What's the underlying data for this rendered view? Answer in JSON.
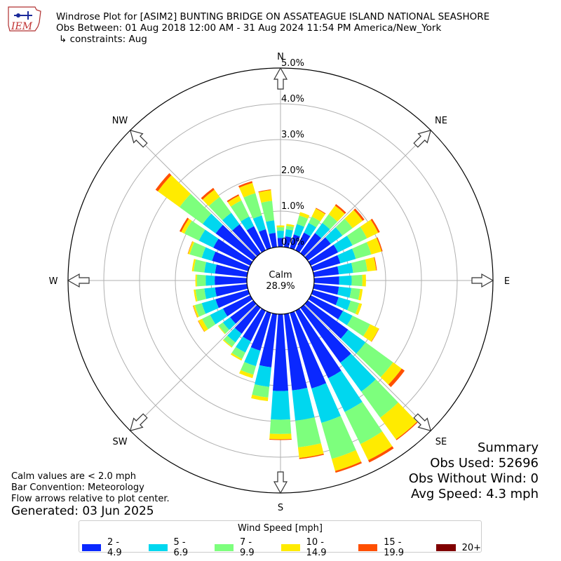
{
  "header": {
    "logo_text": "IEM",
    "title": "Windrose Plot for [ASIM2] BUNTING BRIDGE ON ASSATEAGUE ISLAND NATIONAL SEASHORE",
    "obs_between": "Obs Between: 01 Aug 2018 12:00 AM - 31 Aug 2024 11:54 PM America/New_York",
    "constraints": "↳ constraints: Aug"
  },
  "calm": {
    "label": "Calm",
    "value": "28.9%"
  },
  "summary": {
    "heading": "Summary",
    "obs_used": "Obs Used: 52696",
    "obs_without_wind": "Obs Without Wind: 0",
    "avg_speed": "Avg Speed: 4.3 mph"
  },
  "notes": {
    "calm_note": "Calm values are < 2.0 mph",
    "bar_convention": "Bar Convention: Meteorology",
    "flow_arrows": "Flow arrows relative to plot center."
  },
  "generated": "Generated: 03 Jun 2025",
  "legend": {
    "title": "Wind Speed [mph]",
    "items": [
      {
        "label": "2 - 4.9",
        "color": "#0a28ff"
      },
      {
        "label": "5 - 6.9",
        "color": "#00d7ef"
      },
      {
        "label": "7 - 9.9",
        "color": "#7dff7d"
      },
      {
        "label": "10 - 14.9",
        "color": "#ffeb00"
      },
      {
        "label": "15 - 19.9",
        "color": "#ff4f00"
      },
      {
        "label": "20+",
        "color": "#800000"
      }
    ]
  },
  "chart_data": {
    "type": "windrose",
    "radial_unit": "%",
    "r_ticks": [
      "0.0%",
      "1.0%",
      "2.0%",
      "3.0%",
      "4.0%",
      "5.0%"
    ],
    "r_max": 5.0,
    "calm_percent": 28.9,
    "compass_labels": [
      "N",
      "NE",
      "E",
      "SE",
      "S",
      "SW",
      "W",
      "NW"
    ],
    "direction_step_deg": 10,
    "bins": [
      "2 - 4.9",
      "5 - 6.9",
      "7 - 9.9",
      "10 - 14.9",
      "15 - 19.9",
      "20+"
    ],
    "directions": [
      {
        "dir": 0,
        "cum": [
          0.25,
          0.45,
          0.55,
          0.6,
          0.6,
          0.6
        ]
      },
      {
        "dir": 10,
        "cum": [
          0.3,
          0.5,
          0.6,
          0.65,
          0.65,
          0.65
        ]
      },
      {
        "dir": 20,
        "cum": [
          0.4,
          0.7,
          0.95,
          1.05,
          1.05,
          1.05
        ]
      },
      {
        "dir": 30,
        "cum": [
          0.55,
          0.85,
          1.05,
          1.3,
          1.32,
          1.32
        ]
      },
      {
        "dir": 40,
        "cum": [
          0.7,
          1.05,
          1.35,
          1.65,
          1.7,
          1.7
        ]
      },
      {
        "dir": 50,
        "cum": [
          0.8,
          1.2,
          1.55,
          1.9,
          1.96,
          1.96
        ]
      },
      {
        "dir": 60,
        "cum": [
          0.85,
          1.3,
          1.75,
          2.1,
          2.15,
          2.15
        ]
      },
      {
        "dir": 70,
        "cum": [
          0.8,
          1.25,
          1.7,
          2.0,
          2.03,
          2.03
        ]
      },
      {
        "dir": 80,
        "cum": [
          0.7,
          1.1,
          1.5,
          1.75,
          1.77,
          1.77
        ]
      },
      {
        "dir": 90,
        "cum": [
          0.7,
          1.05,
          1.35,
          1.45,
          1.45,
          1.45
        ]
      },
      {
        "dir": 100,
        "cum": [
          0.7,
          1.05,
          1.3,
          1.37,
          1.37,
          1.37
        ]
      },
      {
        "dir": 110,
        "cum": [
          0.75,
          1.1,
          1.35,
          1.43,
          1.43,
          1.43
        ]
      },
      {
        "dir": 120,
        "cum": [
          1.0,
          1.3,
          1.85,
          2.12,
          2.13,
          2.13
        ]
      },
      {
        "dir": 130,
        "cum": [
          1.4,
          2.0,
          2.95,
          3.25,
          3.35,
          3.35
        ]
      },
      {
        "dir": 140,
        "cum": [
          1.9,
          2.9,
          3.8,
          4.55,
          4.58,
          4.58
        ]
      },
      {
        "dir": 150,
        "cum": [
          2.1,
          3.15,
          4.15,
          4.65,
          4.72,
          4.72
        ]
      },
      {
        "dir": 160,
        "cum": [
          2.2,
          3.2,
          4.25,
          4.6,
          4.65,
          4.65
        ]
      },
      {
        "dir": 170,
        "cum": [
          2.15,
          3.0,
          3.75,
          4.05,
          4.08,
          4.08
        ]
      },
      {
        "dir": 180,
        "cum": [
          2.15,
          2.95,
          3.35,
          3.5,
          3.52,
          3.52
        ]
      },
      {
        "dir": 190,
        "cum": [
          1.5,
          2.05,
          2.35,
          2.45,
          2.45,
          2.45
        ]
      },
      {
        "dir": 200,
        "cum": [
          1.1,
          1.55,
          1.8,
          1.9,
          1.9,
          1.9
        ]
      },
      {
        "dir": 210,
        "cum": [
          0.95,
          1.3,
          1.5,
          1.55,
          1.55,
          1.55
        ]
      },
      {
        "dir": 220,
        "cum": [
          0.9,
          1.2,
          1.35,
          1.38,
          1.38,
          1.38
        ]
      },
      {
        "dir": 230,
        "cum": [
          0.8,
          1.05,
          1.2,
          1.22,
          1.22,
          1.22
        ]
      },
      {
        "dir": 240,
        "cum": [
          0.85,
          1.25,
          1.5,
          1.62,
          1.63,
          1.63
        ]
      },
      {
        "dir": 250,
        "cum": [
          0.95,
          1.35,
          1.55,
          1.6,
          1.61,
          1.61
        ]
      },
      {
        "dir": 260,
        "cum": [
          0.9,
          1.2,
          1.45,
          1.5,
          1.5,
          1.5
        ]
      },
      {
        "dir": 270,
        "cum": [
          0.9,
          1.15,
          1.4,
          1.44,
          1.44,
          1.44
        ]
      },
      {
        "dir": 280,
        "cum": [
          0.9,
          1.2,
          1.5,
          1.55,
          1.55,
          1.55
        ]
      },
      {
        "dir": 290,
        "cum": [
          1.05,
          1.35,
          1.7,
          1.75,
          1.76,
          1.76
        ]
      },
      {
        "dir": 300,
        "cum": [
          1.15,
          1.6,
          2.05,
          2.15,
          2.2,
          2.2
        ]
      },
      {
        "dir": 310,
        "cum": [
          1.3,
          1.75,
          2.55,
          3.3,
          3.38,
          3.38
        ]
      },
      {
        "dir": 320,
        "cum": [
          1.0,
          1.4,
          1.95,
          2.2,
          2.26,
          2.26
        ]
      },
      {
        "dir": 330,
        "cum": [
          0.75,
          1.05,
          1.55,
          1.7,
          1.74,
          1.74
        ]
      },
      {
        "dir": 340,
        "cum": [
          0.55,
          0.95,
          1.6,
          1.9,
          1.95,
          1.95
        ]
      },
      {
        "dir": 350,
        "cum": [
          0.4,
          0.75,
          1.3,
          1.6,
          1.62,
          1.62
        ]
      }
    ]
  }
}
